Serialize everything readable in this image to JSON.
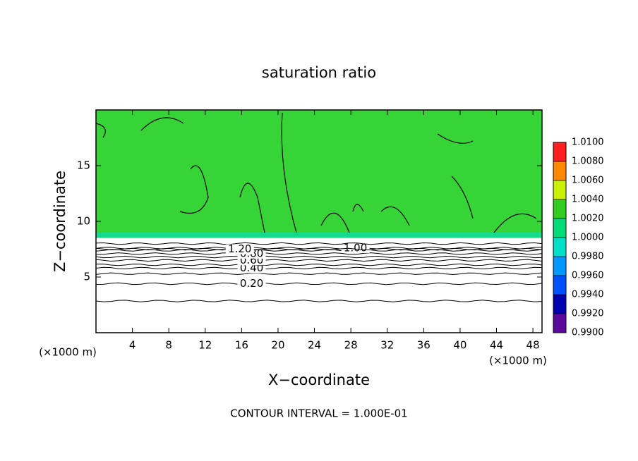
{
  "chart_data": {
    "type": "contour",
    "title": "saturation ratio",
    "xlabel": "X−coordinate",
    "ylabel": "Z−coordinate",
    "x_unit": "(×1000 m)",
    "footnote": "CONTOUR INTERVAL = 1.000E-01",
    "xlim": [
      0,
      49
    ],
    "ylim": [
      0,
      20
    ],
    "xticks": [
      4,
      8,
      12,
      16,
      20,
      24,
      28,
      32,
      36,
      40,
      44,
      48
    ],
    "yticks": [
      5,
      10,
      15
    ],
    "field_color": "#37d437",
    "contours": [
      {
        "level": 0.1,
        "z": 2.85
      },
      {
        "level": 0.2,
        "z": 4.4,
        "label": "0.20",
        "label_x": 17.1
      },
      {
        "level": 0.3,
        "z": 5.3
      },
      {
        "level": 0.4,
        "z": 5.8,
        "label": "0.40",
        "label_x": 17.1
      },
      {
        "level": 0.5,
        "z": 6.1
      },
      {
        "level": 0.6,
        "z": 6.5,
        "label": "0.60",
        "label_x": 17.1
      },
      {
        "level": 0.7,
        "z": 6.8
      },
      {
        "level": 0.8,
        "z": 7.1,
        "label": "0.80",
        "label_x": 17.1
      },
      {
        "level": 0.9,
        "z": 7.4
      },
      {
        "level": 1.0,
        "z": 7.6,
        "label": "1.00",
        "label_x": 28.5
      },
      {
        "level": 1.1,
        "z": 8.0
      },
      {
        "level": 1.2,
        "z": 7.5,
        "label": "1.20",
        "label_x": 15.8
      }
    ],
    "colorbar": {
      "clim": [
        0.99,
        1.01
      ],
      "colors": [
        "#5a0a9a",
        "#0000b0",
        "#0050ff",
        "#0098ff",
        "#00e0c8",
        "#00dc78",
        "#33cc22",
        "#c8f000",
        "#ff8800",
        "#ff1e1e",
        "#ff9090"
      ],
      "ticks": [
        {
          "value": 0.99,
          "label": "0.9900"
        },
        {
          "value": 0.992,
          "label": "0.9920"
        },
        {
          "value": 0.994,
          "label": "0.9940"
        },
        {
          "value": 0.996,
          "label": "0.9960"
        },
        {
          "value": 0.998,
          "label": "0.9980"
        },
        {
          "value": 1.0,
          "label": "1.0000"
        },
        {
          "value": 1.002,
          "label": "1.0020"
        },
        {
          "value": 1.004,
          "label": "1.0040"
        },
        {
          "value": 1.006,
          "label": "1.0060"
        },
        {
          "value": 1.008,
          "label": "1.0080"
        },
        {
          "value": 1.01,
          "label": "1.0100"
        }
      ]
    }
  }
}
